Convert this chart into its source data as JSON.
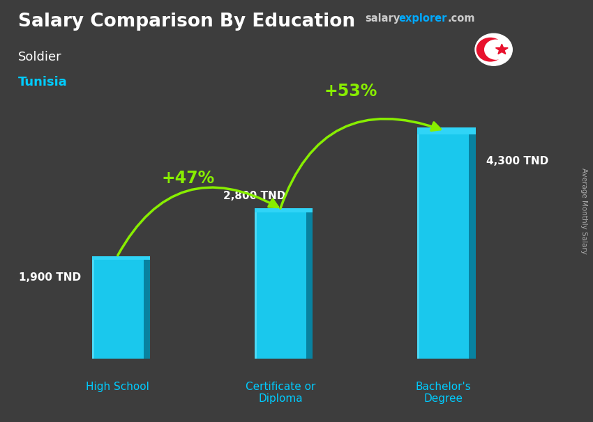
{
  "title": "Salary Comparison By Education",
  "subtitle1": "Soldier",
  "subtitle2": "Tunisia",
  "watermark_salary": "salary",
  "watermark_explorer": "explorer",
  "watermark_com": ".com",
  "right_label": "Average Monthly Salary",
  "categories": [
    "High School",
    "Certificate or\nDiploma",
    "Bachelor's\nDegree"
  ],
  "values": [
    1900,
    2800,
    4300
  ],
  "value_labels": [
    "1,900 TND",
    "2,800 TND",
    "4,300 TND"
  ],
  "pct_labels": [
    "+47%",
    "+53%"
  ],
  "bar_color_face": "#1ac8ed",
  "bar_color_light": "#4dd9f5",
  "bar_color_dark": "#0a9cbf",
  "bar_color_top": "#30d4f7",
  "bar_color_side": "#0882a0",
  "arrow_color": "#88ee00",
  "title_color": "#ffffff",
  "subtitle1_color": "#ffffff",
  "subtitle2_color": "#00ccff",
  "category_color": "#00ccff",
  "value_label_color": "#ffffff",
  "pct_color": "#88ee00",
  "bg_color": "#3d3d3d",
  "watermark_salary_color": "#cccccc",
  "watermark_explorer_color": "#00aaff",
  "watermark_com_color": "#cccccc",
  "right_label_color": "#aaaaaa",
  "flag_red": "#e8112d",
  "flag_white": "#ffffff",
  "ylim": [
    0,
    5500
  ],
  "bar_width": 0.38,
  "x_positions": [
    1.0,
    2.2,
    3.4
  ],
  "xlim": [
    0.35,
    4.2
  ]
}
